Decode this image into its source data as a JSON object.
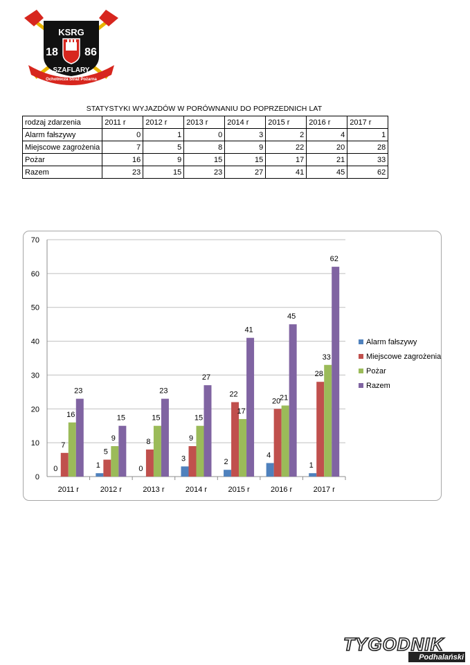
{
  "logo": {
    "top_text": "KSRG",
    "year_left": "18",
    "year_right": "86",
    "name": "SZAFLARY",
    "ribbon": "Ochotnicza Straż Pożarna",
    "colors": {
      "red": "#d7261e",
      "black": "#111111",
      "gold": "#e8b400",
      "white": "#ffffff"
    }
  },
  "table": {
    "title": "STATYSTYKI WYJAZDÓW W PORÓWNANIU DO POPRZEDNICH LAT",
    "header_label": "rodzaj zdarzenia",
    "columns": [
      "2011 r",
      "2012 r",
      "2013 r",
      "2014 r",
      "2015 r",
      "2016 r",
      "2017 r"
    ],
    "rows": [
      {
        "label": "Alarm fałszywy",
        "values": [
          0,
          1,
          0,
          3,
          2,
          4,
          1
        ]
      },
      {
        "label": "Miejscowe zagrożenia",
        "values": [
          7,
          5,
          8,
          9,
          22,
          20,
          28
        ]
      },
      {
        "label": "Pożar",
        "values": [
          16,
          9,
          15,
          15,
          17,
          21,
          33
        ]
      },
      {
        "label": "Razem",
        "values": [
          23,
          15,
          23,
          27,
          41,
          45,
          62
        ]
      }
    ]
  },
  "chart_data": {
    "type": "bar",
    "categories": [
      "2011 r",
      "2012 r",
      "2013 r",
      "2014 r",
      "2015 r",
      "2016 r",
      "2017 r"
    ],
    "series": [
      {
        "name": "Alarm fałszywy",
        "color": "#4f81bd",
        "values": [
          0,
          1,
          0,
          3,
          2,
          4,
          1
        ]
      },
      {
        "name": "Miejscowe zagrożenia",
        "color": "#c0504d",
        "values": [
          7,
          5,
          8,
          9,
          22,
          20,
          28
        ]
      },
      {
        "name": "Pożar",
        "color": "#9bbb59",
        "values": [
          16,
          9,
          15,
          15,
          17,
          21,
          33
        ]
      },
      {
        "name": "Razem",
        "color": "#8064a2",
        "values": [
          23,
          15,
          23,
          27,
          41,
          45,
          62
        ]
      }
    ],
    "ylim": [
      0,
      70
    ],
    "yticks": [
      0,
      10,
      20,
      30,
      40,
      50,
      60,
      70
    ],
    "grid": true,
    "legend": "right",
    "data_labels": true
  },
  "footer": {
    "brand_main": "TYGODNIK",
    "brand_sub": "Podhalański"
  }
}
